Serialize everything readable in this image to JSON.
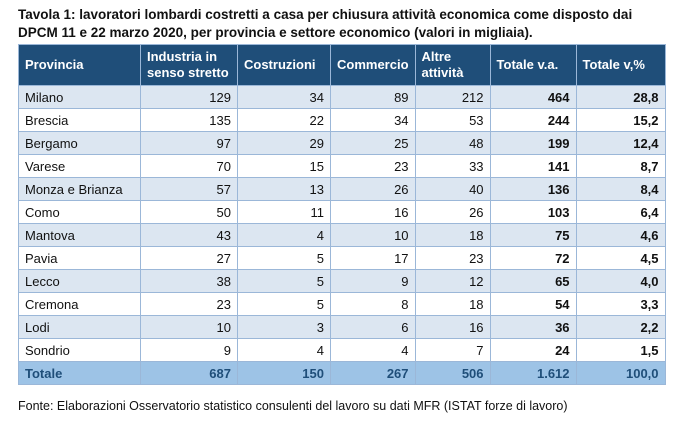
{
  "title": "Tavola 1: lavoratori lombardi costretti a casa per chiusura attività economica come disposto dai DPCM 11 e 22 marzo 2020, per provincia e settore economico (valori in migliaia).",
  "table": {
    "header": [
      "Provincia",
      "Industria in senso stretto",
      "Costruzioni",
      "Commercio",
      "Altre attività",
      "Totale v.a.",
      "Totale v,%"
    ],
    "rows": [
      [
        "Milano",
        "129",
        "34",
        "89",
        "212",
        "464",
        "28,8"
      ],
      [
        "Brescia",
        "135",
        "22",
        "34",
        "53",
        "244",
        "15,2"
      ],
      [
        "Bergamo",
        "97",
        "29",
        "25",
        "48",
        "199",
        "12,4"
      ],
      [
        "Varese",
        "70",
        "15",
        "23",
        "33",
        "141",
        "8,7"
      ],
      [
        "Monza e Brianza",
        "57",
        "13",
        "26",
        "40",
        "136",
        "8,4"
      ],
      [
        "Como",
        "50",
        "11",
        "16",
        "26",
        "103",
        "6,4"
      ],
      [
        "Mantova",
        "43",
        "4",
        "10",
        "18",
        "75",
        "4,6"
      ],
      [
        "Pavia",
        "27",
        "5",
        "17",
        "23",
        "72",
        "4,5"
      ],
      [
        "Lecco",
        "38",
        "5",
        "9",
        "12",
        "65",
        "4,0"
      ],
      [
        "Cremona",
        "23",
        "5",
        "8",
        "18",
        "54",
        "3,3"
      ],
      [
        "Lodi",
        "10",
        "3",
        "6",
        "16",
        "36",
        "2,2"
      ],
      [
        "Sondrio",
        "9",
        "4",
        "4",
        "7",
        "24",
        "1,5"
      ]
    ],
    "total": [
      "Totale",
      "687",
      "150",
      "267",
      "506",
      "1.612",
      "100,0"
    ]
  },
  "footer": "Fonte: Elaborazioni Osservatorio statistico consulenti del lavoro su dati MFR (ISTAT forze di lavoro)"
}
